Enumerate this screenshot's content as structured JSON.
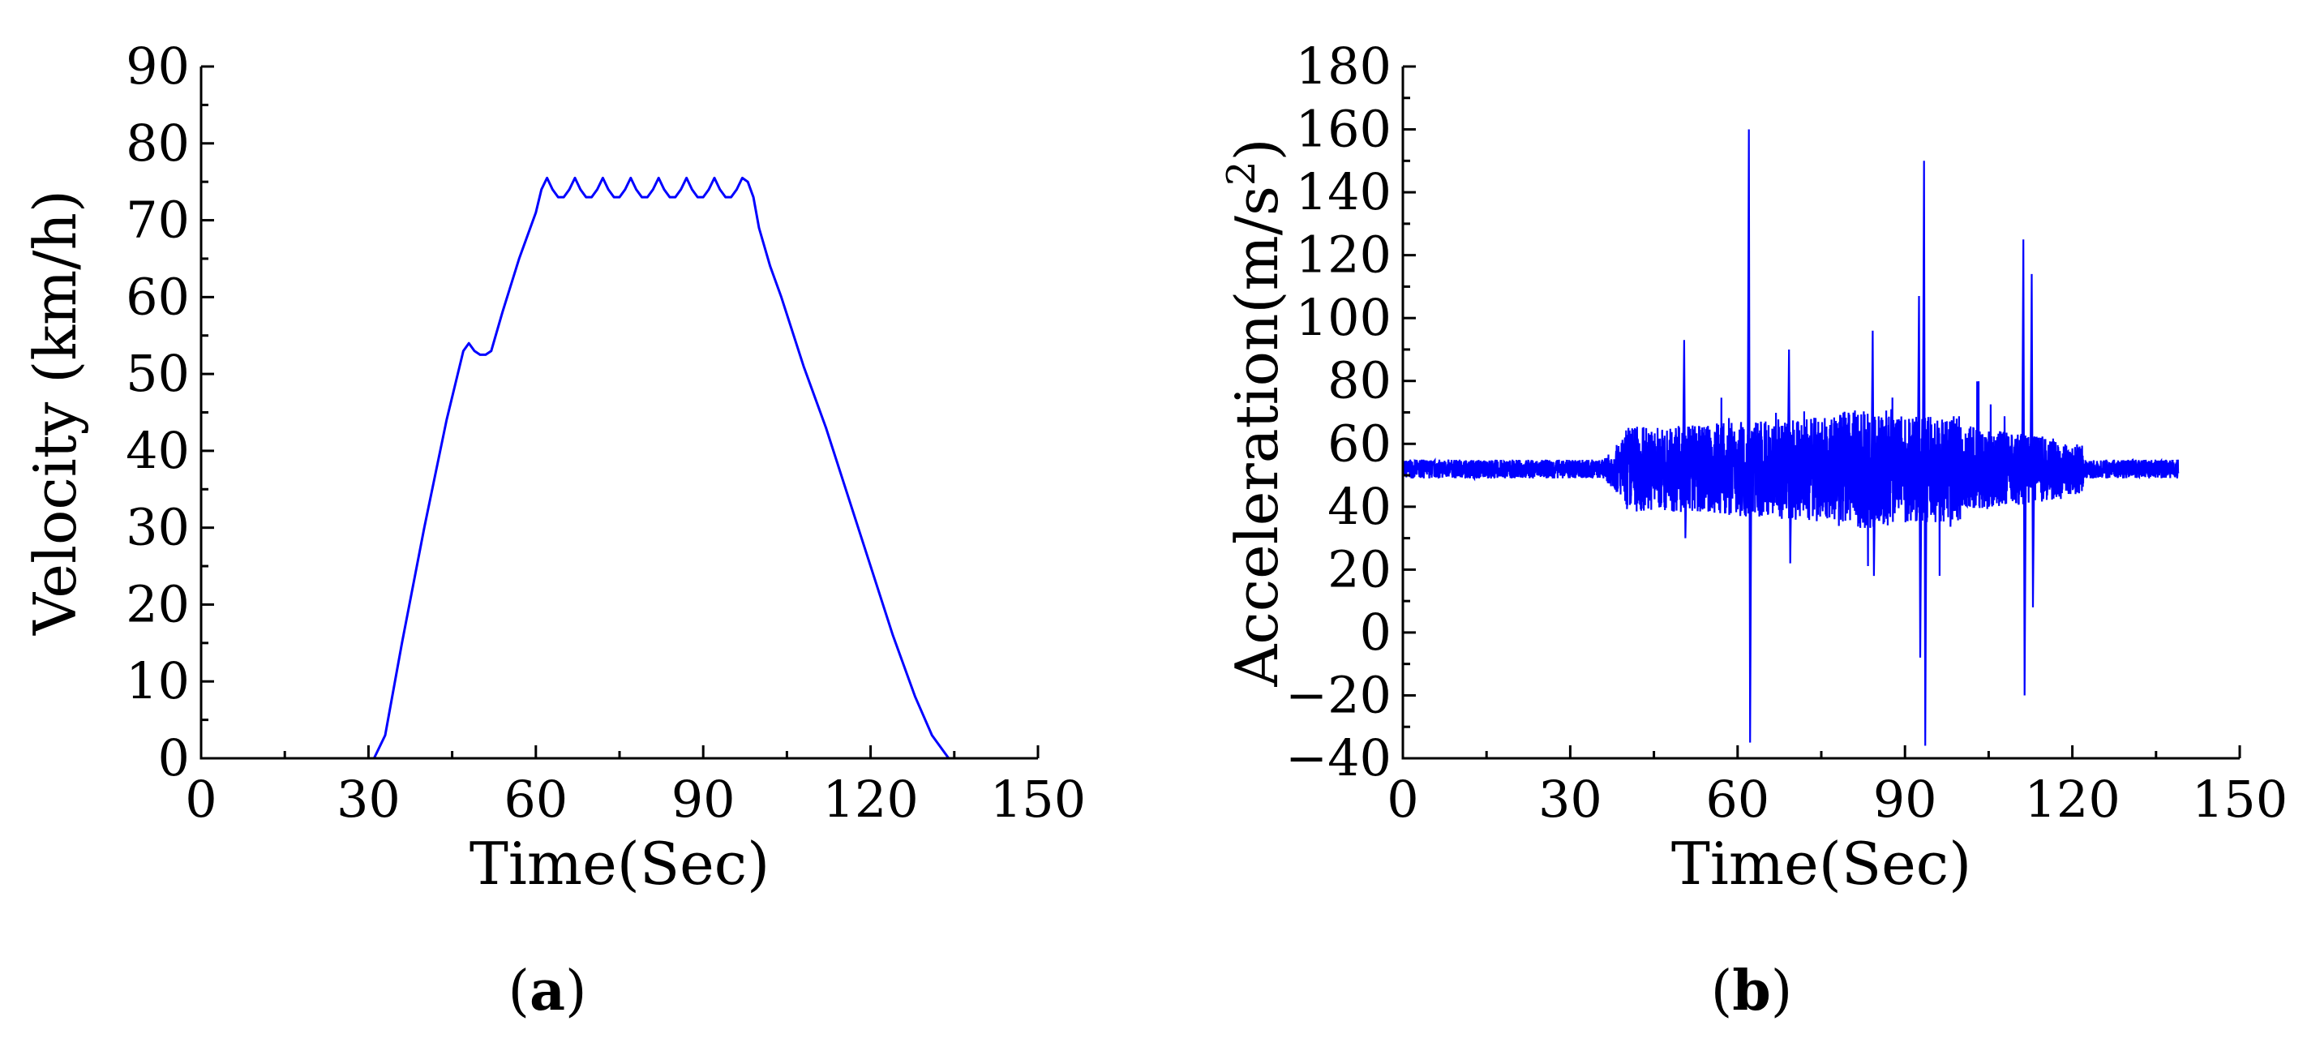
{
  "chart_data": [
    {
      "type": "line",
      "panel_label": "a",
      "title": "",
      "xlabel": "Time(Sec)",
      "ylabel": "Velocity (km/h)",
      "xlim": [
        0,
        150
      ],
      "ylim": [
        0,
        90
      ],
      "xticks": [
        0,
        30,
        60,
        90,
        120,
        150
      ],
      "yticks": [
        0,
        10,
        20,
        30,
        40,
        50,
        60,
        70,
        80,
        90
      ],
      "grid": false,
      "series": [
        {
          "color": "#0000ff",
          "x": [
            0,
            31,
            33,
            36,
            40,
            44,
            47,
            48,
            49,
            50,
            51,
            52,
            54,
            57,
            60,
            61,
            62,
            63,
            64,
            65,
            66,
            67,
            68,
            69,
            70,
            71,
            72,
            73,
            74,
            75,
            76,
            77,
            78,
            79,
            80,
            81,
            82,
            83,
            84,
            85,
            86,
            87,
            88,
            89,
            90,
            91,
            92,
            93,
            94,
            95,
            96,
            97,
            98,
            99,
            100,
            102,
            104,
            108,
            112,
            116,
            120,
            124,
            128,
            131,
            134,
            135
          ],
          "y": [
            0,
            0,
            3,
            15,
            30,
            44,
            53,
            54,
            53,
            52.5,
            52.5,
            53,
            58,
            65,
            71,
            74,
            75.5,
            74,
            73,
            73,
            74,
            75.5,
            74,
            73,
            73,
            74,
            75.5,
            74,
            73,
            73,
            74,
            75.5,
            74,
            73,
            73,
            74,
            75.5,
            74,
            73,
            73,
            74,
            75.5,
            74,
            73,
            73,
            74,
            75.5,
            74,
            73,
            73,
            74,
            75.5,
            75,
            73,
            69,
            64,
            60,
            51,
            43,
            34,
            25,
            16,
            8,
            3,
            0,
            0
          ]
        }
      ]
    },
    {
      "type": "line",
      "panel_label": "b",
      "title": "",
      "xlabel": "Time(Sec)",
      "ylabel": "Acceleration(m/s",
      "ylabel_sup": "2",
      "ylabel_end": ")",
      "xlim": [
        0,
        150
      ],
      "ylim": [
        -40,
        180
      ],
      "xticks": [
        0,
        30,
        60,
        90,
        120,
        150
      ],
      "yticks": [
        -40,
        -20,
        0,
        20,
        40,
        60,
        80,
        100,
        120,
        140,
        160,
        180
      ],
      "grid": false,
      "data_end_x": 139,
      "baseline_y": 52,
      "spikes": [
        {
          "x": 61.8,
          "min": -35,
          "max": 160
        },
        {
          "x": 93.2,
          "min": -36,
          "max": 150
        },
        {
          "x": 111.0,
          "min": -20,
          "max": 125
        },
        {
          "x": 92.3,
          "min": -8,
          "max": 107
        },
        {
          "x": 112.5,
          "min": 8,
          "max": 114
        },
        {
          "x": 50.2,
          "min": 30,
          "max": 93
        },
        {
          "x": 69.0,
          "min": 22,
          "max": 90
        },
        {
          "x": 84.0,
          "min": 18,
          "max": 96
        }
      ],
      "series": [
        {
          "color": "#0000ff"
        }
      ]
    }
  ]
}
